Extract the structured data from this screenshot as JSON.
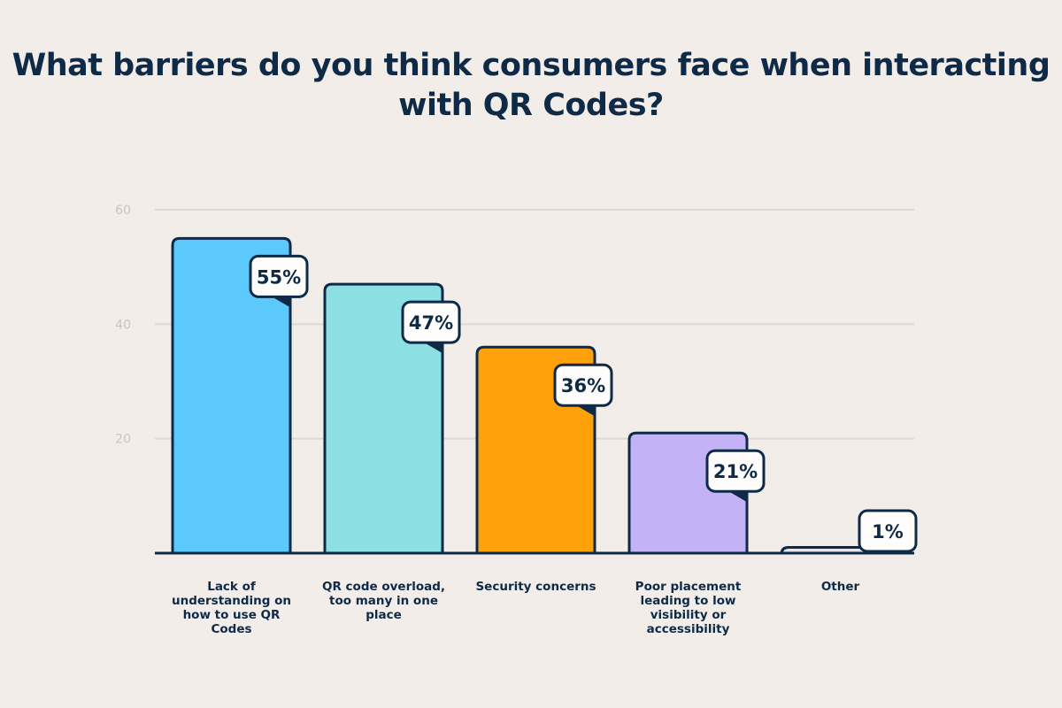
{
  "chart_data": {
    "type": "bar",
    "title": "What barriers do you think consumers face when interacting with QR Codes?",
    "categories": [
      "Lack of understanding on how to use QR Codes",
      "QR code overload, too many in one place",
      "Security concerns",
      "Poor placement leading to low visibility or accessibility",
      "Other"
    ],
    "values": [
      55,
      47,
      36,
      21,
      1
    ],
    "data_labels": [
      "55%",
      "47%",
      "36%",
      "21%",
      "1%"
    ],
    "ylim": [
      0,
      60
    ],
    "yticks": [
      "20",
      "40",
      "60"
    ],
    "grid": true,
    "colors": [
      "#5BC9FC",
      "#8CE0E4",
      "#FFA10B",
      "#C3B3F6",
      "#E9E4EA"
    ],
    "outline_color": "#0E2A47",
    "xlabel": "",
    "ylabel": ""
  }
}
